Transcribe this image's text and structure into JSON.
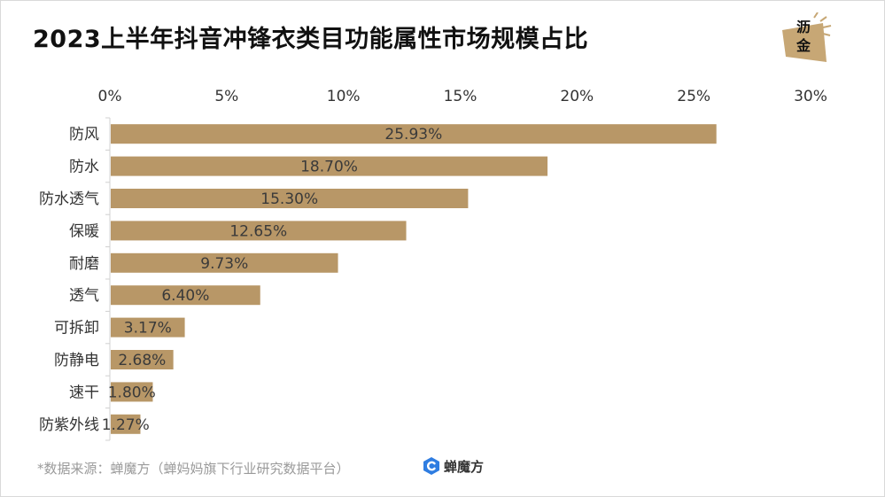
{
  "chart_data": {
    "type": "bar",
    "orientation": "horizontal",
    "title": "2023上半年抖音冲锋衣类目功能属性市场规模占比",
    "categories": [
      "防风",
      "防水",
      "防水透气",
      "保暖",
      "耐磨",
      "透气",
      "可拆卸",
      "防静电",
      "速干",
      "防紫外线"
    ],
    "values": [
      25.93,
      18.7,
      15.3,
      12.65,
      9.73,
      6.4,
      3.17,
      2.68,
      1.8,
      1.27
    ],
    "data_labels": [
      "25.93%",
      "18.70%",
      "15.30%",
      "12.65%",
      "9.73%",
      "6.40%",
      "3.17%",
      "2.68%",
      "1.80%",
      "1.27%"
    ],
    "x_ticks": [
      "0%",
      "5%",
      "10%",
      "15%",
      "20%",
      "25%",
      "30%"
    ],
    "x_tick_values": [
      0,
      5,
      10,
      15,
      20,
      25,
      30
    ],
    "xlim": [
      0,
      30
    ],
    "xlabel": "",
    "ylabel": "",
    "x_axis_position": "top",
    "grid": false,
    "bar_color": "#b89767"
  },
  "logo": {
    "line1": "沥",
    "line2": "金"
  },
  "footer": {
    "source": "*数据来源：蝉魔方（蝉妈妈旗下行业研究数据平台）",
    "brand": "蝉魔方"
  },
  "colors": {
    "bar": "#b89767",
    "logo_bg": "#c7a775",
    "brand_blue": "#2f7de1"
  }
}
